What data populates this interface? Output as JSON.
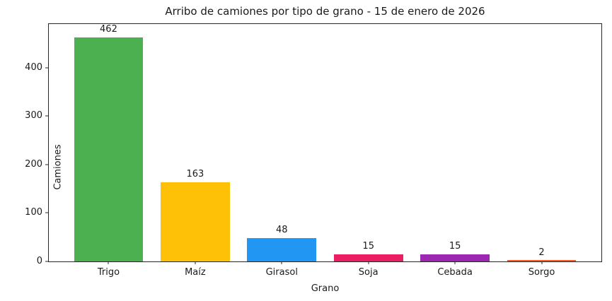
{
  "chart_data": {
    "type": "bar",
    "title": "Arribo de camiones por tipo de grano - 15 de enero de 2026",
    "xlabel": "Grano",
    "ylabel": "Camiones",
    "categories": [
      "Trigo",
      "Maíz",
      "Girasol",
      "Soja",
      "Cebada",
      "Sorgo"
    ],
    "values": [
      462,
      163,
      48,
      15,
      15,
      2
    ],
    "bar_colors": [
      "#4caf50",
      "#ffc107",
      "#2196f3",
      "#e91e63",
      "#9c27b0",
      "#ff5722"
    ],
    "yticks": [
      0,
      100,
      200,
      300,
      400
    ],
    "ylim": [
      0,
      490
    ],
    "xlim": [
      -0.69,
      5.69
    ],
    "bar_width": 0.8,
    "grid": false,
    "legend": false,
    "background_color": "#ffffff",
    "axis_color": "#262626",
    "text_color": "#1a1a1a"
  }
}
